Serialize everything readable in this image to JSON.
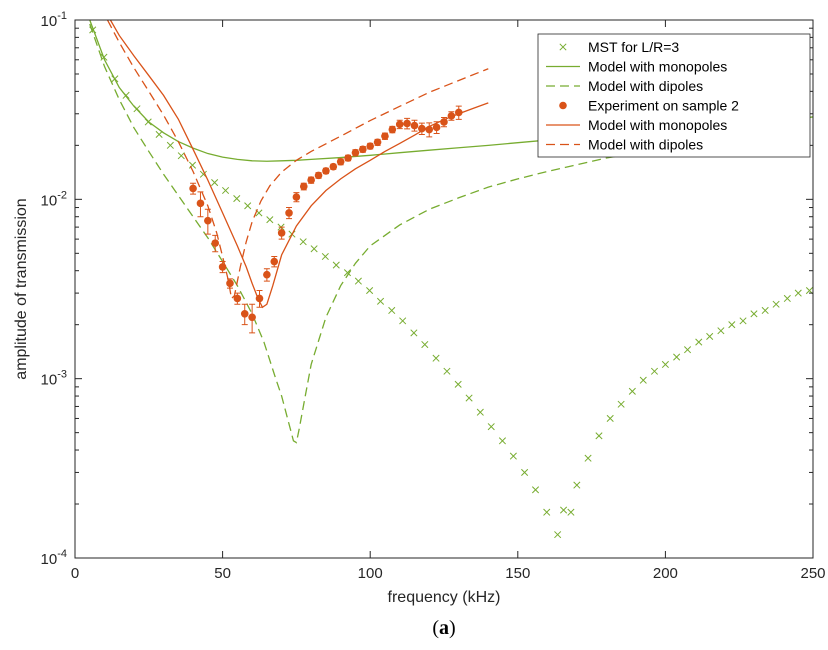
{
  "figure": {
    "caption_open": "(",
    "caption_letter": "a",
    "caption_close": ")"
  },
  "chart_data": {
    "type": "line",
    "xlabel": "frequency (kHz)",
    "ylabel": "amplitude of transmission",
    "xlim": [
      0,
      250
    ],
    "ylim": [
      0.0001,
      0.1
    ],
    "yscale": "log",
    "grid": false,
    "legend_position": "top-right",
    "x_ticks": [
      {
        "value": 0,
        "label": "0"
      },
      {
        "value": 50,
        "label": "50"
      },
      {
        "value": 100,
        "label": "100"
      },
      {
        "value": 150,
        "label": "150"
      },
      {
        "value": 200,
        "label": "200"
      },
      {
        "value": 250,
        "label": "250"
      }
    ],
    "y_ticks": [
      {
        "value": 0.0001,
        "base": "10",
        "exp": "-4"
      },
      {
        "value": 0.001,
        "base": "10",
        "exp": "-3"
      },
      {
        "value": 0.01,
        "base": "10",
        "exp": "-2"
      },
      {
        "value": 0.1,
        "base": "10",
        "exp": "-1"
      }
    ],
    "series": [
      {
        "name": "MST for L/R=3",
        "color": "#77ac30",
        "style": "markers",
        "marker": "x",
        "x": [
          6,
          9.8,
          13.5,
          17.3,
          21,
          24.8,
          28.5,
          32.3,
          36,
          39.8,
          43.5,
          47.3,
          51,
          54.8,
          58.5,
          62.3,
          66,
          69.8,
          73.5,
          77.3,
          81,
          84.8,
          88.5,
          92.3,
          96,
          99.8,
          103.5,
          107.3,
          111,
          114.8,
          118.5,
          122.3,
          126,
          129.8,
          133.5,
          137.3,
          141,
          144.8,
          148.5,
          152.3,
          156,
          159.8,
          163.5,
          165.5,
          168,
          170,
          173.8,
          177.5,
          181.3,
          185,
          188.8,
          192.5,
          196.3,
          200,
          203.8,
          207.5,
          211.3,
          215,
          218.8,
          222.5,
          226.3,
          230,
          233.8,
          237.5,
          241.3,
          245,
          248.8
        ],
        "y": [
          0.088,
          0.062,
          0.047,
          0.038,
          0.032,
          0.027,
          0.023,
          0.02,
          0.0175,
          0.0155,
          0.0138,
          0.0124,
          0.0112,
          0.0101,
          0.0092,
          0.0084,
          0.0077,
          0.007,
          0.0064,
          0.0058,
          0.0053,
          0.0048,
          0.0043,
          0.0039,
          0.0035,
          0.0031,
          0.0027,
          0.0024,
          0.0021,
          0.0018,
          0.00155,
          0.0013,
          0.0011,
          0.00093,
          0.00078,
          0.00065,
          0.00054,
          0.00045,
          0.00037,
          0.0003,
          0.00024,
          0.00018,
          0.000135,
          0.000185,
          0.00018,
          0.000255,
          0.00036,
          0.00048,
          0.0006,
          0.00072,
          0.00085,
          0.00098,
          0.0011,
          0.0012,
          0.00132,
          0.00145,
          0.0016,
          0.00172,
          0.00185,
          0.002,
          0.0021,
          0.0023,
          0.0024,
          0.0026,
          0.0028,
          0.003,
          0.0031
        ]
      },
      {
        "name": "Model with monopoles",
        "color": "#77ac30",
        "style": "solid",
        "x": [
          5,
          10,
          15,
          20,
          25,
          30,
          35,
          40,
          45,
          50,
          55,
          60,
          65,
          70,
          75,
          80,
          90,
          100,
          110,
          120,
          130,
          140,
          150,
          160,
          170,
          180,
          190,
          200,
          210,
          220,
          230,
          240,
          250
        ],
        "y": [
          0.1,
          0.06,
          0.042,
          0.033,
          0.027,
          0.0235,
          0.021,
          0.0193,
          0.018,
          0.0172,
          0.0167,
          0.0164,
          0.0163,
          0.0164,
          0.0165,
          0.0167,
          0.0171,
          0.0176,
          0.0182,
          0.0188,
          0.0194,
          0.02,
          0.0207,
          0.0214,
          0.0221,
          0.0228,
          0.0235,
          0.0243,
          0.0251,
          0.0259,
          0.0267,
          0.0276,
          0.0288
        ]
      },
      {
        "name": "Model with dipoles",
        "color": "#77ac30",
        "style": "dashed",
        "x": [
          5,
          10,
          15,
          20,
          25,
          30,
          35,
          40,
          45,
          50,
          55,
          60,
          64,
          68,
          70,
          72,
          73,
          74,
          75,
          76,
          78,
          80,
          85,
          90,
          95,
          100,
          110,
          120,
          130,
          140,
          150,
          160,
          170,
          180,
          200,
          220,
          240,
          250
        ],
        "y": [
          0.095,
          0.055,
          0.036,
          0.025,
          0.0185,
          0.0138,
          0.0105,
          0.008,
          0.0061,
          0.0045,
          0.0033,
          0.0023,
          0.0016,
          0.001,
          0.0008,
          0.0006,
          0.00052,
          0.00045,
          0.00044,
          0.00053,
          0.0008,
          0.0012,
          0.0022,
          0.0033,
          0.0044,
          0.0055,
          0.0072,
          0.0088,
          0.0102,
          0.0117,
          0.013,
          0.0143,
          0.0156,
          0.017,
          0.0193,
          0.0215,
          0.0238,
          0.025
        ]
      },
      {
        "name": "Experiment on sample 2",
        "color": "#d95319",
        "style": "markers",
        "marker": "dot-errorbar",
        "x": [
          40,
          42.5,
          45,
          47.5,
          50,
          52.5,
          55,
          57.5,
          60,
          62.5,
          65,
          67.5,
          70,
          72.5,
          75,
          77.5,
          80,
          82.5,
          85,
          87.5,
          90,
          92.5,
          95,
          97.5,
          100,
          102.5,
          105,
          107.5,
          110,
          112.5,
          115,
          117.5,
          120,
          122.5,
          125,
          127.5,
          130
        ],
        "y": [
          0.0115,
          0.0095,
          0.0076,
          0.0057,
          0.0042,
          0.0034,
          0.0028,
          0.0023,
          0.0022,
          0.0028,
          0.0038,
          0.0045,
          0.0065,
          0.0084,
          0.0103,
          0.0118,
          0.0128,
          0.0136,
          0.0144,
          0.0152,
          0.0162,
          0.017,
          0.0182,
          0.019,
          0.0198,
          0.0208,
          0.0225,
          0.0245,
          0.0262,
          0.0265,
          0.0258,
          0.0248,
          0.0245,
          0.0252,
          0.027,
          0.0292,
          0.0305
        ],
        "err": [
          0.0008,
          0.0015,
          0.0012,
          0.0006,
          0.0003,
          0.0002,
          0.0002,
          0.0003,
          0.0004,
          0.0003,
          0.0003,
          0.0003,
          0.0005,
          0.0006,
          0.0006,
          0.0005,
          0.0005,
          0.0005,
          0.0005,
          0.0005,
          0.0006,
          0.0006,
          0.0007,
          0.0007,
          0.0007,
          0.0008,
          0.0009,
          0.001,
          0.0014,
          0.0018,
          0.0018,
          0.0018,
          0.0022,
          0.0019,
          0.0016,
          0.0016,
          0.0026
        ]
      },
      {
        "name": "Model with monopoles",
        "color": "#d95319",
        "style": "solid",
        "x": [
          12,
          15,
          20,
          25,
          30,
          35,
          40,
          45,
          50,
          55,
          58,
          60,
          62,
          63.5,
          65,
          67,
          70,
          75,
          80,
          85,
          90,
          95,
          100,
          105,
          110,
          115,
          120,
          125,
          130,
          135,
          140
        ],
        "y": [
          0.1,
          0.082,
          0.063,
          0.049,
          0.038,
          0.028,
          0.019,
          0.0128,
          0.0084,
          0.0055,
          0.0042,
          0.0034,
          0.0028,
          0.0025,
          0.0026,
          0.0033,
          0.0049,
          0.0071,
          0.0092,
          0.0112,
          0.013,
          0.0148,
          0.0165,
          0.0185,
          0.0205,
          0.0228,
          0.0255,
          0.0278,
          0.03,
          0.0322,
          0.0345
        ]
      },
      {
        "name": "Model with dipoles",
        "color": "#d95319",
        "style": "dashed",
        "x": [
          11,
          15,
          20,
          25,
          30,
          35,
          40,
          45,
          48,
          50,
          52,
          53,
          54,
          56,
          58,
          60,
          63,
          66,
          70,
          75,
          80,
          90,
          100,
          110,
          120,
          130,
          140
        ],
        "y": [
          0.1,
          0.075,
          0.054,
          0.04,
          0.0295,
          0.021,
          0.0143,
          0.0092,
          0.0065,
          0.0048,
          0.0035,
          0.0028,
          0.0029,
          0.0042,
          0.0058,
          0.0075,
          0.0098,
          0.0119,
          0.0142,
          0.0165,
          0.0185,
          0.0225,
          0.0275,
          0.033,
          0.0395,
          0.046,
          0.0535
        ]
      }
    ]
  }
}
